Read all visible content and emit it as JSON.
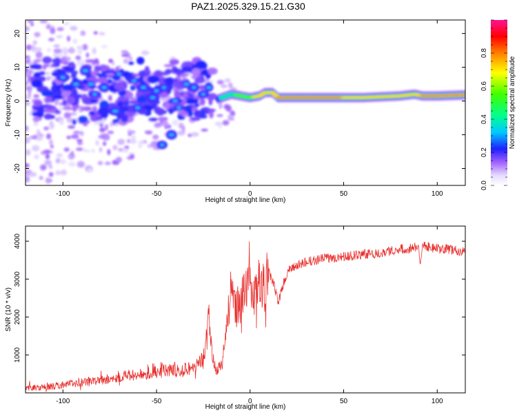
{
  "figure_title": "PAZ1.2025.329.15.21.G30",
  "chart_data": [
    {
      "type": "heatmap",
      "title": "",
      "xlabel": "Height of straight line (km)",
      "ylabel": "Frequency (Hz)",
      "xlim": [
        -120,
        115
      ],
      "ylim": [
        -25,
        24
      ],
      "xticks": [
        -100,
        -50,
        0,
        50,
        100
      ],
      "yticks": [
        -20,
        -10,
        0,
        10,
        20
      ],
      "xtick_labels": [
        "-100",
        "-50",
        "0",
        "50",
        "100"
      ],
      "ytick_labels": [
        "-20",
        "-10",
        "0",
        "10",
        "20"
      ],
      "colorbar": {
        "label": "Normalized spectral amplitude",
        "range": [
          0,
          1
        ],
        "ticks": [
          0.0,
          0.2,
          0.4,
          0.6,
          0.8
        ],
        "tick_labels": [
          "0.0",
          "0.2",
          "0.4",
          "0.6",
          "0.8"
        ],
        "colormap": [
          "#e8e0ff",
          "#8a2be2",
          "#2020ff",
          "#00c0ff",
          "#00ff80",
          "#80ff00",
          "#ffff00",
          "#ff8000",
          "#ff0000",
          "#ff1493"
        ]
      },
      "ridge": {
        "description_points_km": [
          -15,
          -10,
          -5,
          0,
          5,
          8,
          12,
          15,
          20,
          40,
          60,
          80,
          88,
          92,
          100,
          115
        ],
        "frequency_hz": [
          1,
          2,
          1.5,
          1,
          1.5,
          2.5,
          2.5,
          1,
          1,
          1,
          1,
          1.5,
          2,
          1.5,
          1.5,
          1.8
        ],
        "amplitude": [
          0.4,
          0.5,
          0.6,
          0.7,
          0.75,
          0.8,
          0.75,
          0.9,
          0.95,
          0.9,
          0.85,
          0.85,
          0.7,
          0.9,
          0.9,
          0.9
        ]
      }
    },
    {
      "type": "line",
      "title": "",
      "xlabel": "Height of straight line (km)",
      "ylabel": "SNR (10 * v/v)",
      "xlim": [
        -120,
        115
      ],
      "ylim": [
        0,
        4400
      ],
      "xticks": [
        -100,
        -50,
        0,
        50,
        100
      ],
      "yticks": [
        1000,
        2000,
        3000,
        4000
      ],
      "xtick_labels": [
        "-100",
        "-50",
        "0",
        "50",
        "100"
      ],
      "ytick_labels": [
        "1000",
        "2000",
        "3000",
        "4000"
      ],
      "series": [
        {
          "name": "SNR",
          "color": "#e8302e",
          "x": [
            -120,
            -110,
            -100,
            -90,
            -80,
            -70,
            -60,
            -50,
            -40,
            -35,
            -30,
            -25,
            -22,
            -20,
            -18,
            -15,
            -12,
            -10,
            -8,
            -5,
            -2,
            0,
            3,
            5,
            8,
            10,
            13,
            15,
            18,
            20,
            25,
            30,
            40,
            50,
            60,
            70,
            80,
            85,
            88,
            90,
            91,
            92,
            95,
            100,
            105,
            110,
            115
          ],
          "values": [
            100,
            120,
            180,
            250,
            300,
            380,
            450,
            500,
            550,
            580,
            600,
            800,
            1800,
            800,
            500,
            700,
            1800,
            2600,
            2000,
            2200,
            2600,
            2800,
            2300,
            2900,
            2500,
            3200,
            2800,
            2400,
            2900,
            3200,
            3350,
            3450,
            3550,
            3600,
            3650,
            3700,
            3800,
            3800,
            3850,
            3900,
            3300,
            3900,
            3850,
            3800,
            3800,
            3750,
            3700
          ]
        }
      ]
    }
  ]
}
